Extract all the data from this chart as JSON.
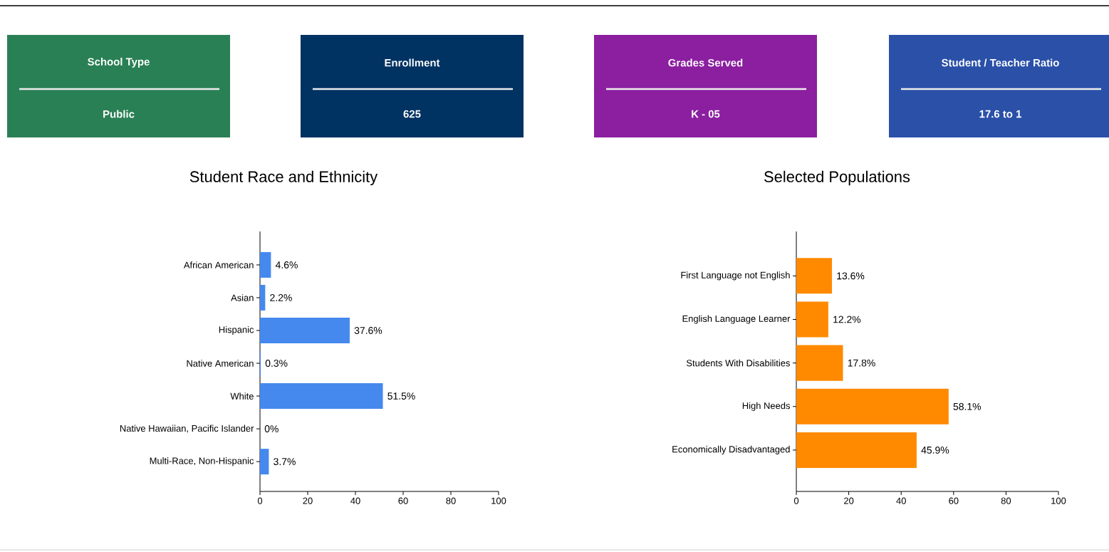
{
  "chart_data": [
    {
      "type": "other",
      "title": "School Type",
      "annotations": [
        "Public"
      ],
      "color": "#2a8055"
    },
    {
      "type": "other",
      "title": "Enrollment",
      "annotations": [
        "625"
      ],
      "color": "#003262"
    },
    {
      "type": "other",
      "title": "Grades Served",
      "annotations": [
        "K - 05"
      ],
      "color": "#8b1fa0"
    },
    {
      "type": "other",
      "title": "Student / Teacher Ratio",
      "annotations": [
        "17.6 to 1"
      ],
      "color": "#2a50a8"
    },
    {
      "type": "bar",
      "orientation": "horizontal",
      "title": "Student Race and Ethnicity",
      "categories": [
        "African American",
        "Asian",
        "Hispanic",
        "Native American",
        "White",
        "Native Hawaiian, Pacific Islander",
        "Multi-Race, Non-Hispanic"
      ],
      "values": [
        4.6,
        2.2,
        37.6,
        0.3,
        51.5,
        0,
        3.7
      ],
      "value_labels": [
        "4.6%",
        "2.2%",
        "37.6%",
        "0.3%",
        "51.5%",
        "0%",
        "3.7%"
      ],
      "color": "#4589ee",
      "xlim": [
        0,
        100
      ],
      "xticks": [
        0,
        20,
        40,
        60,
        80,
        100
      ]
    },
    {
      "type": "bar",
      "orientation": "horizontal",
      "title": "Selected Populations",
      "categories": [
        "First Language not English",
        "English Language Learner",
        "Students With Disabilities",
        "High Needs",
        "Economically Disadvantaged"
      ],
      "values": [
        13.6,
        12.2,
        17.8,
        58.1,
        45.9
      ],
      "value_labels": [
        "13.6%",
        "12.2%",
        "17.8%",
        "58.1%",
        "45.9%"
      ],
      "color": "#ff8a00",
      "xlim": [
        0,
        100
      ],
      "xticks": [
        0,
        20,
        40,
        60,
        80,
        100
      ]
    }
  ]
}
